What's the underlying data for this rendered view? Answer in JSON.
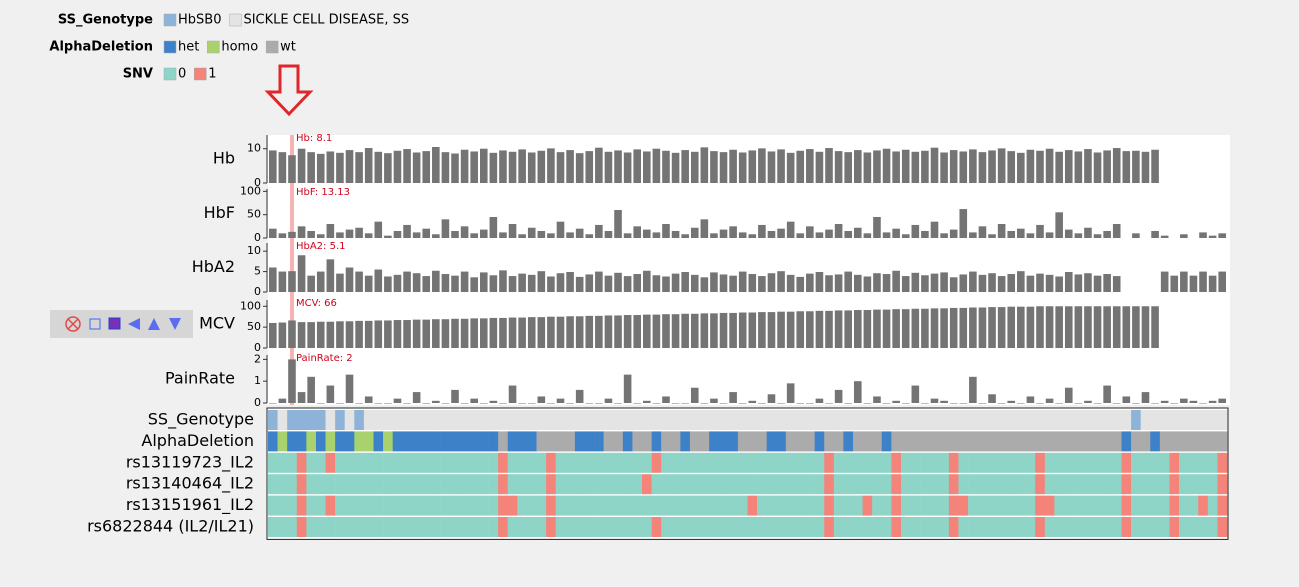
{
  "legends": [
    {
      "title": "SS_Genotype",
      "items": [
        {
          "label": "HbSB0",
          "color": "#8db3d9"
        },
        {
          "label": "SICKLE CELL DISEASE, SS",
          "color": "#e4e4e4"
        }
      ]
    },
    {
      "title": "AlphaDeletion",
      "items": [
        {
          "label": "het",
          "color": "#3d82c8"
        },
        {
          "label": "homo",
          "color": "#a9d26e"
        },
        {
          "label": "wt",
          "color": "#ababab"
        }
      ]
    },
    {
      "title": "SNV",
      "items": [
        {
          "label": "0",
          "color": "#8ed5c8"
        },
        {
          "label": "1",
          "color": "#f4837a"
        }
      ]
    }
  ],
  "highlight_sample": 2,
  "chart_data": [
    {
      "type": "bar",
      "title": "Hb",
      "annotation": "Hb: 8.1",
      "color": "#747474",
      "ylim": [
        0,
        14
      ],
      "yticks": [
        0,
        10
      ],
      "values": [
        9.5,
        9.0,
        8.1,
        10.0,
        9.0,
        8.5,
        9.2,
        8.8,
        9.6,
        9.0,
        10.2,
        9.1,
        8.7,
        9.4,
        9.9,
        8.9,
        9.3,
        10.5,
        9.0,
        8.6,
        9.7,
        9.2,
        10.0,
        8.8,
        9.5,
        9.1,
        9.8,
        8.9,
        9.4,
        10.1,
        9.0,
        9.6,
        8.7,
        9.3,
        10.3,
        9.1,
        9.5,
        8.9,
        9.8,
        9.2,
        10.0,
        9.4,
        8.8,
        9.6,
        9.1,
        10.4,
        9.3,
        9.0,
        9.7,
        8.9,
        9.5,
        10.1,
        9.2,
        9.8,
        8.8,
        9.4,
        9.9,
        9.1,
        10.2,
        9.3,
        9.0,
        9.6,
        8.9,
        9.5,
        10.0,
        9.2,
        9.7,
        9.1,
        9.4,
        10.3,
        8.9,
        9.6,
        9.2,
        9.8,
        9.0,
        9.5,
        10.1,
        9.3,
        8.8,
        9.7,
        9.4,
        10.0,
        9.1,
        9.6,
        9.2,
        9.9,
        8.9,
        9.5,
        10.2,
        9.3,
        9.4,
        9.1,
        9.7,
        null,
        null,
        null,
        null,
        null,
        null,
        null
      ]
    },
    {
      "type": "bar",
      "title": "HbF",
      "annotation": "HbF: 13.13",
      "color": "#747474",
      "ylim": [
        0,
        105
      ],
      "yticks": [
        0,
        50,
        100
      ],
      "values": [
        20,
        10,
        13.13,
        25,
        15,
        8,
        30,
        12,
        18,
        22,
        10,
        35,
        5,
        15,
        28,
        12,
        20,
        8,
        40,
        15,
        25,
        10,
        18,
        45,
        12,
        30,
        8,
        22,
        15,
        10,
        35,
        12,
        20,
        8,
        28,
        15,
        60,
        10,
        25,
        18,
        12,
        30,
        15,
        8,
        22,
        40,
        10,
        18,
        25,
        12,
        8,
        28,
        15,
        20,
        35,
        10,
        25,
        12,
        18,
        30,
        15,
        22,
        10,
        45,
        12,
        20,
        8,
        28,
        15,
        35,
        10,
        18,
        62,
        12,
        25,
        8,
        30,
        15,
        20,
        10,
        28,
        12,
        55,
        18,
        10,
        22,
        8,
        15,
        30,
        null,
        10,
        null,
        15,
        5,
        null,
        8,
        null,
        12,
        5,
        10
      ]
    },
    {
      "type": "bar",
      "title": "HbA2",
      "annotation": "HbA2: 5.1",
      "color": "#747474",
      "ylim": [
        0,
        12
      ],
      "yticks": [
        0,
        5,
        10
      ],
      "values": [
        6,
        5,
        5.1,
        9,
        4,
        5,
        8,
        4.5,
        6,
        5,
        4,
        5.5,
        3.8,
        4.2,
        5,
        4.6,
        3.9,
        5.2,
        4.4,
        4,
        5,
        3.6,
        4.8,
        4.1,
        5.3,
        3.9,
        4.5,
        4.2,
        5.1,
        3.8,
        4.6,
        4.9,
        3.7,
        4.3,
        5,
        4,
        4.7,
        3.9,
        4.4,
        5.2,
        4.1,
        3.8,
        4.5,
        4.9,
        4.2,
        3.6,
        4.8,
        4.3,
        4,
        5,
        4.4,
        3.9,
        4.6,
        5.1,
        4.2,
        3.7,
        4.5,
        4.9,
        4.1,
        4.3,
        5,
        4.2,
        3.8,
        4.6,
        4.4,
        5.2,
        3.9,
        4.7,
        4.1,
        4.5,
        4.8,
        3.6,
        4.3,
        5,
        4.2,
        4.6,
        3.9,
        4.4,
        5.1,
        4,
        4.5,
        4.2,
        3.8,
        4.9,
        4.3,
        4.6,
        4,
        4.4,
        3.9,
        null,
        null,
        null,
        null,
        5,
        4,
        5,
        4,
        5,
        4,
        5
      ]
    },
    {
      "type": "bar",
      "title": "MCV",
      "annotation": "MCV: 66",
      "color": "#747474",
      "ylim": [
        0,
        115
      ],
      "yticks": [
        0,
        50,
        100
      ],
      "values": [
        60,
        61,
        66,
        62,
        62,
        63,
        63,
        64,
        64,
        65,
        65,
        66,
        66,
        67,
        67,
        68,
        68,
        69,
        69,
        70,
        70,
        71,
        71,
        72,
        72,
        73,
        73,
        74,
        74,
        75,
        75,
        76,
        76,
        77,
        77,
        78,
        78,
        79,
        79,
        80,
        80,
        81,
        81,
        82,
        82,
        83,
        83,
        84,
        84,
        85,
        85,
        86,
        86,
        87,
        87,
        88,
        88,
        89,
        89,
        90,
        90,
        91,
        91,
        92,
        92,
        93,
        93,
        94,
        94,
        95,
        95,
        96,
        96,
        97,
        97,
        98,
        98,
        99,
        99,
        99,
        100,
        100,
        100,
        100,
        100,
        100,
        100,
        100,
        100,
        100,
        100,
        100,
        100,
        null,
        null,
        null,
        null,
        null,
        null,
        null
      ]
    },
    {
      "type": "bar",
      "title": "PainRate",
      "annotation": "PainRate: 2",
      "color": "#747474",
      "ylim": [
        0,
        2.2
      ],
      "yticks": [
        0,
        1,
        2
      ],
      "values": [
        0,
        0.2,
        2,
        0.5,
        1.2,
        0,
        0.8,
        0,
        1.3,
        0,
        0.3,
        0,
        0,
        0.2,
        0,
        0.5,
        0,
        0.1,
        0,
        0.6,
        0,
        0.2,
        0,
        0.1,
        0,
        0.8,
        0,
        0,
        0.3,
        0,
        0.2,
        0,
        0.6,
        0,
        0,
        0.2,
        0,
        1.3,
        0,
        0.1,
        0,
        0.3,
        0,
        0,
        0.7,
        0,
        0.2,
        0,
        0.5,
        0,
        0.1,
        0,
        0.4,
        0,
        0.9,
        0,
        0,
        0.2,
        0,
        0.6,
        0,
        1.0,
        0,
        0.3,
        0,
        0.1,
        0,
        0.8,
        0,
        0.2,
        0.1,
        0,
        0,
        1.2,
        0,
        0.4,
        0,
        0.1,
        0,
        0.3,
        0,
        0.2,
        0,
        0.7,
        0,
        0.1,
        0,
        0.8,
        0,
        0.3,
        0,
        0.5,
        0,
        0.1,
        0,
        0.2,
        0.1,
        0,
        0.1,
        0.2
      ]
    },
    {
      "type": "heatmap",
      "rows": [
        {
          "name": "SS_Genotype",
          "legend": 0,
          "values": [
            0,
            1,
            0,
            0,
            0,
            0,
            1,
            0,
            1,
            0,
            1,
            1,
            1,
            1,
            1,
            1,
            1,
            1,
            1,
            1,
            1,
            1,
            1,
            1,
            1,
            1,
            1,
            1,
            1,
            1,
            1,
            1,
            1,
            1,
            1,
            1,
            1,
            1,
            1,
            1,
            1,
            1,
            1,
            1,
            1,
            1,
            1,
            1,
            1,
            1,
            1,
            1,
            1,
            1,
            1,
            1,
            1,
            1,
            1,
            1,
            1,
            1,
            1,
            1,
            1,
            1,
            1,
            1,
            1,
            1,
            1,
            1,
            1,
            1,
            1,
            1,
            1,
            1,
            1,
            1,
            1,
            1,
            1,
            1,
            1,
            1,
            1,
            1,
            1,
            1,
            0,
            1,
            1,
            1,
            1,
            1,
            1,
            1,
            1,
            1
          ]
        },
        {
          "name": "AlphaDeletion",
          "legend": 1,
          "values": [
            0,
            1,
            0,
            0,
            1,
            0,
            1,
            0,
            0,
            1,
            1,
            0,
            1,
            0,
            0,
            0,
            0,
            0,
            0,
            0,
            0,
            0,
            0,
            0,
            2,
            0,
            0,
            0,
            2,
            2,
            2,
            2,
            0,
            0,
            0,
            2,
            2,
            0,
            2,
            2,
            0,
            2,
            2,
            0,
            2,
            2,
            0,
            0,
            0,
            2,
            2,
            2,
            0,
            0,
            2,
            2,
            2,
            0,
            2,
            2,
            0,
            2,
            2,
            2,
            0,
            2,
            2,
            2,
            2,
            2,
            2,
            2,
            2,
            2,
            2,
            2,
            2,
            2,
            2,
            2,
            2,
            2,
            2,
            2,
            2,
            2,
            2,
            2,
            2,
            0,
            2,
            2,
            0,
            2,
            2,
            2,
            2,
            2,
            2,
            2
          ]
        },
        {
          "name": "rs13119723_IL2",
          "legend": 2,
          "values": [
            0,
            0,
            0,
            1,
            0,
            0,
            1,
            0,
            0,
            0,
            0,
            0,
            0,
            0,
            0,
            0,
            0,
            0,
            0,
            0,
            0,
            0,
            0,
            0,
            1,
            0,
            0,
            0,
            0,
            1,
            0,
            0,
            0,
            0,
            0,
            0,
            0,
            0,
            0,
            0,
            1,
            0,
            0,
            0,
            0,
            0,
            0,
            0,
            0,
            0,
            0,
            0,
            0,
            0,
            0,
            0,
            0,
            0,
            1,
            0,
            0,
            0,
            0,
            0,
            0,
            1,
            0,
            0,
            0,
            0,
            0,
            1,
            0,
            0,
            0,
            0,
            0,
            0,
            0,
            0,
            1,
            0,
            0,
            0,
            0,
            0,
            0,
            0,
            0,
            1,
            0,
            0,
            0,
            0,
            1,
            0,
            0,
            0,
            0,
            1
          ]
        },
        {
          "name": "rs13140464_IL2",
          "legend": 2,
          "values": [
            0,
            0,
            0,
            1,
            0,
            0,
            0,
            0,
            0,
            0,
            0,
            0,
            0,
            0,
            0,
            0,
            0,
            0,
            0,
            0,
            0,
            0,
            0,
            0,
            1,
            0,
            0,
            0,
            0,
            1,
            0,
            0,
            0,
            0,
            0,
            0,
            0,
            0,
            0,
            1,
            0,
            0,
            0,
            0,
            0,
            0,
            0,
            0,
            0,
            0,
            0,
            0,
            0,
            0,
            0,
            0,
            0,
            0,
            1,
            0,
            0,
            0,
            0,
            0,
            0,
            1,
            0,
            0,
            0,
            0,
            0,
            1,
            0,
            0,
            0,
            0,
            0,
            0,
            0,
            0,
            1,
            0,
            0,
            0,
            0,
            0,
            0,
            0,
            0,
            1,
            0,
            0,
            0,
            0,
            1,
            0,
            0,
            0,
            0,
            1
          ]
        },
        {
          "name": "rs13151961_IL2",
          "legend": 2,
          "values": [
            0,
            0,
            0,
            1,
            0,
            0,
            1,
            0,
            0,
            0,
            0,
            0,
            0,
            0,
            0,
            0,
            0,
            0,
            0,
            0,
            0,
            0,
            0,
            0,
            1,
            1,
            0,
            0,
            0,
            1,
            0,
            0,
            0,
            0,
            0,
            0,
            0,
            0,
            0,
            0,
            0,
            0,
            0,
            0,
            0,
            0,
            0,
            0,
            0,
            0,
            1,
            0,
            0,
            0,
            0,
            0,
            0,
            0,
            1,
            0,
            0,
            0,
            1,
            0,
            0,
            1,
            0,
            0,
            0,
            0,
            0,
            1,
            1,
            0,
            0,
            0,
            0,
            0,
            0,
            0,
            1,
            1,
            0,
            0,
            0,
            0,
            0,
            0,
            0,
            1,
            0,
            0,
            0,
            0,
            1,
            0,
            0,
            1,
            0,
            1
          ]
        },
        {
          "name": "rs6822844 (IL2/IL21)",
          "legend": 2,
          "values": [
            0,
            0,
            0,
            1,
            0,
            0,
            0,
            0,
            0,
            0,
            0,
            0,
            0,
            0,
            0,
            0,
            0,
            0,
            0,
            0,
            0,
            0,
            0,
            0,
            1,
            0,
            0,
            0,
            0,
            1,
            0,
            0,
            0,
            0,
            0,
            0,
            0,
            0,
            0,
            0,
            1,
            0,
            0,
            0,
            0,
            0,
            0,
            0,
            0,
            0,
            0,
            0,
            0,
            0,
            0,
            0,
            0,
            0,
            1,
            0,
            0,
            0,
            0,
            0,
            0,
            1,
            0,
            0,
            0,
            0,
            0,
            1,
            0,
            0,
            0,
            0,
            0,
            0,
            0,
            0,
            1,
            0,
            0,
            0,
            0,
            0,
            0,
            0,
            0,
            1,
            0,
            0,
            0,
            0,
            1,
            0,
            0,
            0,
            0,
            1
          ]
        }
      ]
    }
  ]
}
